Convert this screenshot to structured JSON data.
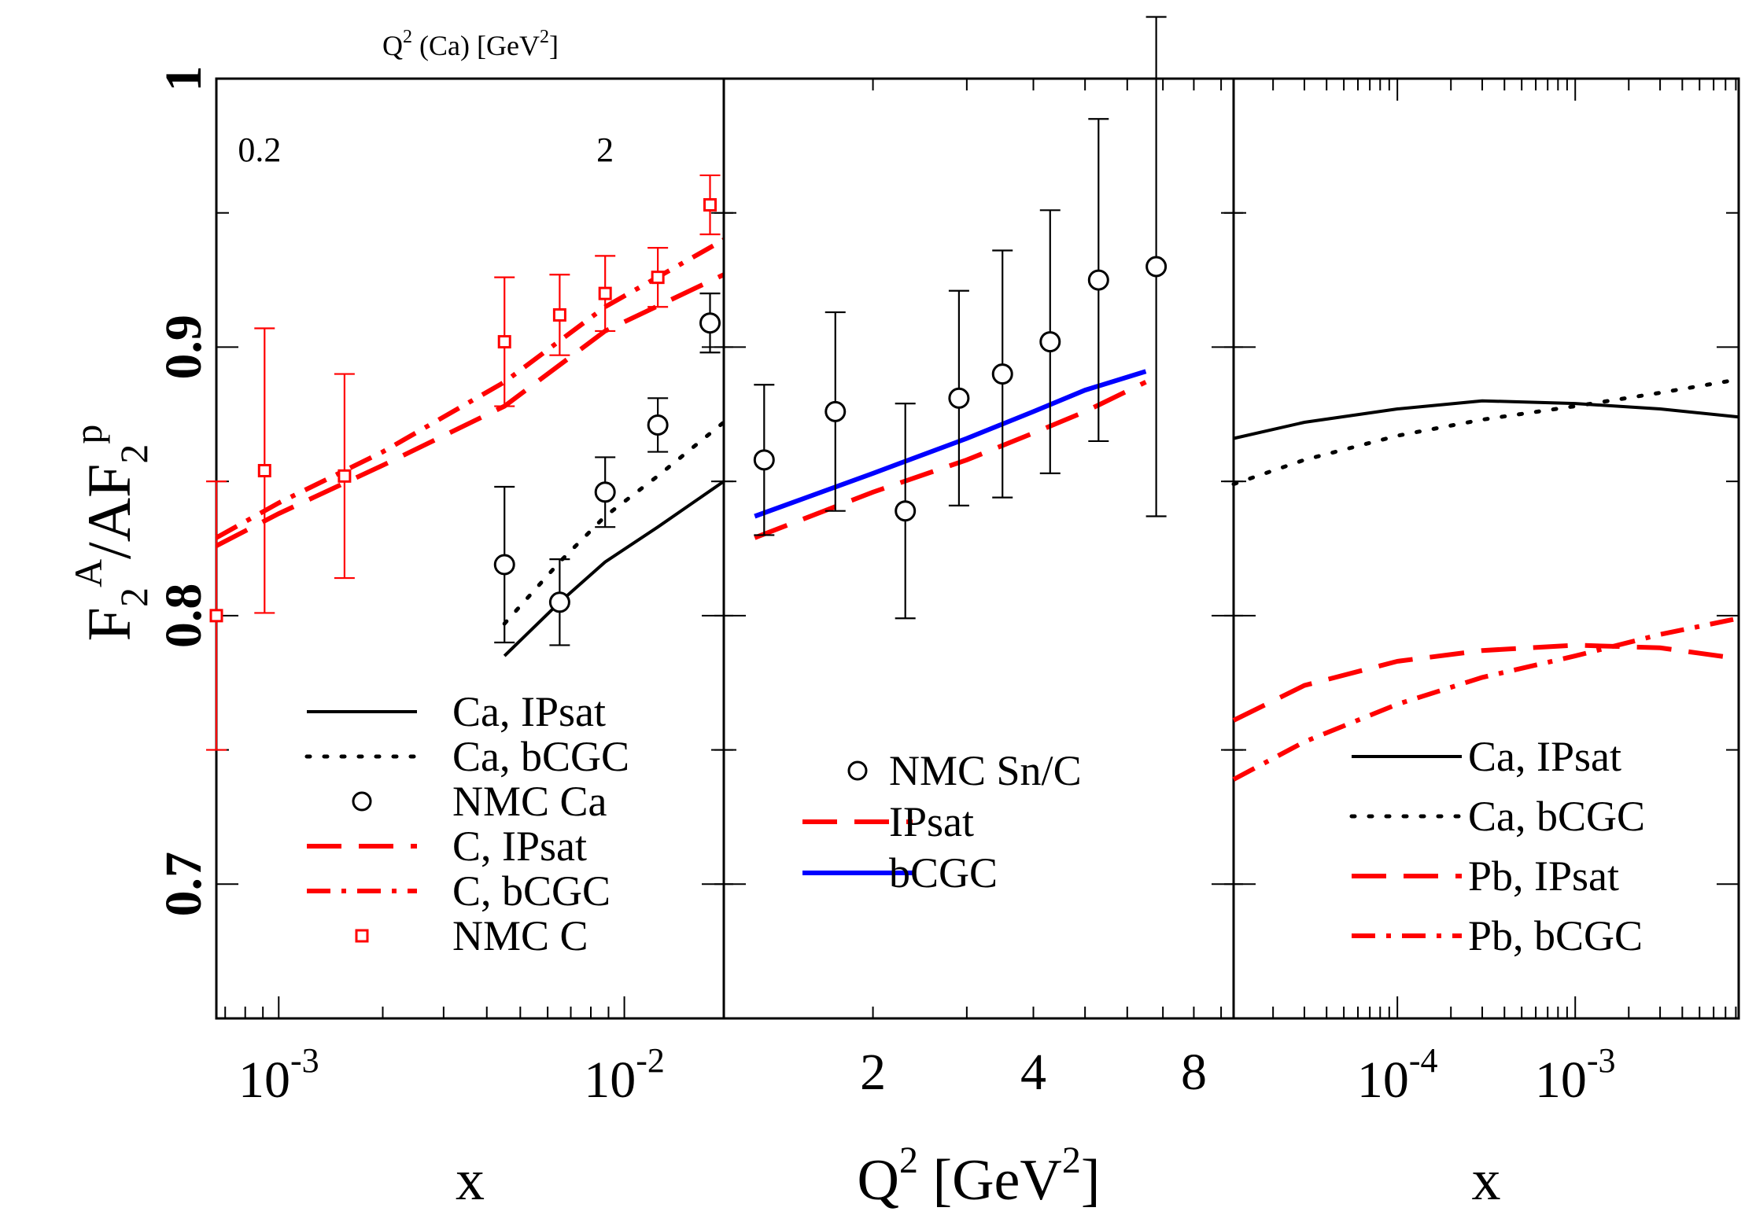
{
  "colors": {
    "black": "#000000",
    "red": "#ff0000",
    "blue": "#0000ff"
  },
  "chart_data": [
    {
      "type": "scatter",
      "panel": "left",
      "xscale": "log",
      "xlim": [
        0.00066,
        0.0194
      ],
      "ylim": [
        0.65,
        1.0
      ],
      "xlabel": "x",
      "ylabel_parts": [
        "F",
        "2",
        "A",
        "/AF",
        "2",
        "p"
      ],
      "xticks": [
        {
          "value": 0.001,
          "base": "10",
          "exp": "-3"
        },
        {
          "value": 0.01,
          "base": "10",
          "exp": "-2"
        }
      ],
      "yticks": [
        {
          "value": 0.7,
          "label": "0.7"
        },
        {
          "value": 0.8,
          "label": "0.8"
        },
        {
          "value": 0.9,
          "label": "0.9"
        },
        {
          "value": 1.0,
          "label": "1"
        }
      ],
      "top_axis": {
        "label_parts": [
          "Q",
          "2",
          " (Ca) [GeV",
          "2",
          "]"
        ],
        "ticks": [
          {
            "x": 0.00088,
            "label": "0.2"
          },
          {
            "x": 0.0088,
            "label": "2"
          }
        ]
      },
      "series": [
        {
          "name": "Ca, IPsat",
          "style": "solid",
          "color": "#000000",
          "x": [
            0.0045,
            0.0065,
            0.0088,
            0.0125,
            0.0194
          ],
          "y": [
            0.785,
            0.805,
            0.82,
            0.833,
            0.85
          ]
        },
        {
          "name": "Ca, bCGC",
          "style": "dotted",
          "color": "#000000",
          "x": [
            0.0045,
            0.0065,
            0.0088,
            0.0125,
            0.0194
          ],
          "y": [
            0.797,
            0.82,
            0.837,
            0.852,
            0.872
          ]
        },
        {
          "name": "NMC Ca",
          "style": "markers",
          "marker": "circle",
          "color": "#000000",
          "x": [
            0.0045,
            0.0065,
            0.0088,
            0.0125,
            0.0177
          ],
          "y": [
            0.819,
            0.805,
            0.846,
            0.871,
            0.909
          ],
          "err": [
            0.029,
            0.016,
            0.013,
            0.01,
            0.011
          ]
        },
        {
          "name": "C, IPsat",
          "style": "dashed",
          "color": "#ff0000",
          "x": [
            0.00066,
            0.001,
            0.002,
            0.0045,
            0.0088,
            0.0194
          ],
          "y": [
            0.826,
            0.838,
            0.856,
            0.878,
            0.906,
            0.927
          ]
        },
        {
          "name": "C, bCGC",
          "style": "dashdot",
          "color": "#ff0000",
          "x": [
            0.00066,
            0.001,
            0.002,
            0.0045,
            0.0088,
            0.0194
          ],
          "y": [
            0.829,
            0.842,
            0.861,
            0.887,
            0.915,
            0.94
          ]
        },
        {
          "name": "NMC C",
          "style": "markers",
          "marker": "square",
          "color": "#ff0000",
          "x": [
            0.00066,
            0.00091,
            0.00155,
            0.0045,
            0.0065,
            0.0088,
            0.0125,
            0.0177
          ],
          "y": [
            0.8,
            0.854,
            0.852,
            0.902,
            0.912,
            0.92,
            0.926,
            0.953
          ],
          "err": [
            0.05,
            0.053,
            0.038,
            0.024,
            0.015,
            0.014,
            0.011,
            0.011
          ]
        }
      ],
      "legend": {
        "position": "bottom",
        "entries": [
          "Ca, IPsat",
          "Ca, bCGC",
          "NMC Ca",
          "C, IPsat",
          "C, bCGC",
          "NMC C"
        ]
      }
    },
    {
      "type": "scatter",
      "panel": "middle",
      "xscale": "log",
      "xlim": [
        1.05,
        9.5
      ],
      "ylim": [
        0.65,
        1.0
      ],
      "xlabel_parts": [
        "Q",
        "2",
        " [GeV",
        "2",
        "]"
      ],
      "xticks": [
        {
          "value": 2,
          "label": "2"
        },
        {
          "value": 4,
          "label": "4"
        },
        {
          "value": 8,
          "label": "8"
        }
      ],
      "series": [
        {
          "name": "NMC Sn/C",
          "style": "markers",
          "marker": "circle",
          "color": "#000000",
          "x": [
            1.25,
            1.7,
            2.3,
            2.9,
            3.5,
            4.3,
            5.3,
            6.8
          ],
          "y": [
            0.858,
            0.876,
            0.839,
            0.881,
            0.89,
            0.902,
            0.925,
            0.93
          ],
          "err": [
            0.028,
            0.037,
            0.04,
            0.04,
            0.046,
            0.049,
            0.06,
            0.093
          ]
        },
        {
          "name": "IPsat",
          "style": "dashed",
          "color": "#ff0000",
          "x": [
            1.2,
            2,
            3,
            4,
            5,
            6.5
          ],
          "y": [
            0.829,
            0.846,
            0.858,
            0.868,
            0.876,
            0.887
          ]
        },
        {
          "name": "bCGC",
          "style": "solid",
          "color": "#0000ff",
          "x": [
            1.2,
            2,
            3,
            4,
            5,
            6.5
          ],
          "y": [
            0.837,
            0.853,
            0.866,
            0.876,
            0.884,
            0.891
          ]
        }
      ],
      "legend": {
        "position": "bottom",
        "entries": [
          "NMC Sn/C",
          "IPsat",
          "bCGC"
        ]
      }
    },
    {
      "type": "line",
      "panel": "right",
      "xscale": "log",
      "xlim": [
        1.2e-05,
        0.0083
      ],
      "ylim": [
        0.65,
        1.0
      ],
      "xlabel": "x",
      "xticks": [
        {
          "value": 0.0001,
          "base": "10",
          "exp": "-4"
        },
        {
          "value": 0.001,
          "base": "10",
          "exp": "-3"
        }
      ],
      "series": [
        {
          "name": "Ca, IPsat",
          "style": "solid",
          "color": "#000000",
          "x": [
            1.2e-05,
            3e-05,
            0.0001,
            0.0003,
            0.001,
            0.003,
            0.0083
          ],
          "y": [
            0.866,
            0.872,
            0.877,
            0.88,
            0.879,
            0.877,
            0.874
          ]
        },
        {
          "name": "Ca, bCGC",
          "style": "dotted",
          "color": "#000000",
          "x": [
            1.2e-05,
            3e-05,
            0.0001,
            0.0003,
            0.001,
            0.003,
            0.0083
          ],
          "y": [
            0.849,
            0.858,
            0.867,
            0.873,
            0.878,
            0.883,
            0.888
          ]
        },
        {
          "name": "Pb, IPsat",
          "style": "dashed",
          "color": "#ff0000",
          "x": [
            1.2e-05,
            3e-05,
            0.0001,
            0.0003,
            0.001,
            0.003,
            0.0083
          ],
          "y": [
            0.761,
            0.774,
            0.783,
            0.787,
            0.789,
            0.788,
            0.784
          ]
        },
        {
          "name": "Pb, bCGC",
          "style": "dashdot",
          "color": "#ff0000",
          "x": [
            1.2e-05,
            3e-05,
            0.0001,
            0.0003,
            0.001,
            0.003,
            0.0083
          ],
          "y": [
            0.739,
            0.753,
            0.767,
            0.777,
            0.785,
            0.793,
            0.799
          ]
        }
      ],
      "legend": {
        "position": "bottom-right",
        "entries": [
          "Ca, IPsat",
          "Ca, bCGC",
          "Pb, IPsat",
          "Pb, bCGC"
        ]
      }
    }
  ]
}
